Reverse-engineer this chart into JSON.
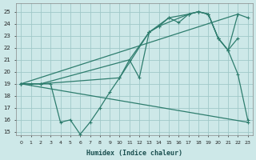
{
  "bg_color": "#cde8e8",
  "grid_color": "#a0c8c8",
  "line_color": "#2e7d6e",
  "xlabel": "Humidex (Indice chaleur)",
  "xlim": [
    -0.5,
    23.5
  ],
  "ylim": [
    14.7,
    25.7
  ],
  "xticks": [
    0,
    1,
    2,
    3,
    4,
    5,
    6,
    7,
    8,
    9,
    10,
    11,
    12,
    13,
    14,
    15,
    16,
    17,
    18,
    19,
    20,
    21,
    22,
    23
  ],
  "yticks": [
    15,
    16,
    17,
    18,
    19,
    20,
    21,
    22,
    23,
    24,
    25
  ],
  "series": [
    {
      "x": [
        0,
        1,
        2,
        3,
        4,
        5,
        6,
        7,
        8,
        9,
        10,
        11,
        12,
        13,
        14,
        15,
        16,
        17,
        18,
        19,
        20,
        21,
        22,
        23
      ],
      "y": [
        19,
        19,
        19,
        19,
        15.8,
        16.0,
        14.8,
        15.8,
        17.0,
        18.3,
        19.5,
        21.0,
        19.5,
        23.3,
        23.8,
        24.5,
        24.1,
        24.8,
        25.0,
        24.8,
        22.8,
        21.8,
        19.8,
        16.0
      ]
    },
    {
      "x": [
        0,
        2,
        11,
        13,
        15,
        17,
        18,
        19,
        20,
        21,
        22,
        23
      ],
      "y": [
        19,
        19,
        21,
        23.3,
        24.5,
        24.8,
        25.0,
        24.8,
        22.8,
        21.8,
        24.8,
        24.5
      ]
    },
    {
      "x": [
        0,
        2,
        10,
        13,
        14,
        17,
        18,
        19,
        20,
        21,
        22
      ],
      "y": [
        19,
        19,
        19.5,
        23.3,
        23.8,
        24.8,
        25.0,
        24.8,
        22.8,
        21.8,
        22.8
      ]
    },
    {
      "x": [
        0,
        22
      ],
      "y": [
        19,
        24.8
      ]
    },
    {
      "x": [
        0,
        23
      ],
      "y": [
        19,
        15.8
      ]
    }
  ]
}
